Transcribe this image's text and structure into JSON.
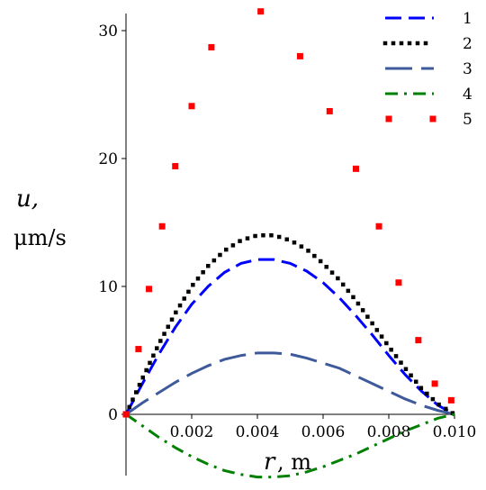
{
  "chart_data": {
    "type": "line",
    "title": "",
    "xlabel": "r",
    "xlabel_unit": ", m",
    "ylabel": "u,",
    "ylabel_unit": "μm/s",
    "xlim": [
      0,
      0.01
    ],
    "ylim": [
      -5,
      31.5
    ],
    "x_ticks": [
      0.002,
      0.004,
      0.006,
      0.008,
      0.01
    ],
    "x_tick_labels": [
      "0.002",
      "0.004",
      "0.006",
      "0.008",
      "0.010"
    ],
    "y_ticks": [
      0,
      10,
      20,
      30
    ],
    "y_tick_labels": [
      "0",
      "10",
      "20",
      "30"
    ],
    "grid": false,
    "legend_position": "top-right",
    "series": [
      {
        "name": "1",
        "color": "#0000ff",
        "style": "dash",
        "x": [
          0,
          0.0005,
          0.001,
          0.0015,
          0.002,
          0.0025,
          0.003,
          0.0035,
          0.004,
          0.0045,
          0.005,
          0.0055,
          0.006,
          0.0065,
          0.007,
          0.0075,
          0.008,
          0.0085,
          0.009,
          0.0095,
          0.01
        ],
        "y": [
          0,
          2.4,
          4.7,
          6.8,
          8.6,
          10.0,
          11.1,
          11.8,
          12.1,
          12.1,
          11.8,
          11.2,
          10.3,
          9.1,
          7.7,
          6.2,
          4.6,
          3.1,
          1.8,
          0.7,
          0
        ]
      },
      {
        "name": "2",
        "color": "#000000",
        "style": "dot",
        "x": [
          0,
          0.0005,
          0.001,
          0.0015,
          0.002,
          0.0025,
          0.003,
          0.0035,
          0.004,
          0.0045,
          0.005,
          0.0055,
          0.006,
          0.0065,
          0.007,
          0.0075,
          0.008,
          0.0085,
          0.009,
          0.0095,
          0.01
        ],
        "y": [
          0,
          2.8,
          5.5,
          7.9,
          10.0,
          11.6,
          12.8,
          13.6,
          14.0,
          14.0,
          13.6,
          12.9,
          11.8,
          10.5,
          8.9,
          7.1,
          5.3,
          3.6,
          2.0,
          0.8,
          0
        ]
      },
      {
        "name": "3",
        "color": "#3e5a9a",
        "style": "longdash",
        "x": [
          0,
          0.0005,
          0.001,
          0.0015,
          0.002,
          0.0025,
          0.003,
          0.0035,
          0.004,
          0.0045,
          0.005,
          0.0055,
          0.006,
          0.0065,
          0.007,
          0.0075,
          0.008,
          0.0085,
          0.009,
          0.0095,
          0.01
        ],
        "y": [
          0,
          0.9,
          1.7,
          2.5,
          3.2,
          3.8,
          4.3,
          4.6,
          4.8,
          4.8,
          4.7,
          4.4,
          4.0,
          3.6,
          3.0,
          2.4,
          1.8,
          1.2,
          0.7,
          0.3,
          0
        ]
      },
      {
        "name": "4",
        "color": "#008000",
        "style": "dashdot",
        "x": [
          0,
          0.0005,
          0.001,
          0.0015,
          0.002,
          0.0025,
          0.003,
          0.0035,
          0.004,
          0.0045,
          0.005,
          0.0055,
          0.006,
          0.0065,
          0.007,
          0.0075,
          0.008,
          0.0085,
          0.009,
          0.0095,
          0.01
        ],
        "y": [
          0,
          -0.9,
          -1.8,
          -2.6,
          -3.3,
          -3.9,
          -4.4,
          -4.7,
          -4.9,
          -4.9,
          -4.8,
          -4.5,
          -4.1,
          -3.6,
          -3.1,
          -2.5,
          -1.9,
          -1.3,
          -0.8,
          -0.3,
          0
        ]
      },
      {
        "name": "5",
        "color": "#ff0000",
        "style": "sparse-dot",
        "x": [
          0,
          0.00038,
          0.0007,
          0.0011,
          0.0015,
          0.002,
          0.0026,
          0.0041,
          0.0053,
          0.0062,
          0.007,
          0.0077,
          0.0083,
          0.0089,
          0.0094,
          0.0099
        ],
        "y": [
          0,
          5.1,
          9.8,
          14.7,
          19.4,
          24.1,
          28.7,
          31.5,
          28.0,
          23.7,
          19.2,
          14.7,
          10.3,
          5.8,
          2.4,
          1.1
        ]
      }
    ]
  }
}
